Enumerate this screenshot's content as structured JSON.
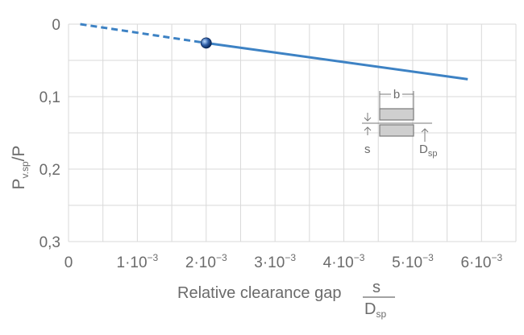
{
  "chart_data": {
    "type": "line",
    "ylabel_main": "P",
    "ylabel_sub": "v.sp",
    "ylabel_tail": "/P",
    "xlabel_text": "Relative clearance gap",
    "xlabel_frac_num": "s",
    "xlabel_frac_den_main": "D",
    "xlabel_frac_den_sub": "sp",
    "xlim": [
      0,
      0.0065
    ],
    "ylim": [
      0,
      0.3
    ],
    "y_inverted": true,
    "grid": true,
    "x_ticks": [
      {
        "value": 0,
        "label": "0"
      },
      {
        "value": 0.001,
        "label": "1·10",
        "exp": "−3"
      },
      {
        "value": 0.002,
        "label": "2·10",
        "exp": "−3"
      },
      {
        "value": 0.003,
        "label": "3·10",
        "exp": "−3"
      },
      {
        "value": 0.004,
        "label": "4·10",
        "exp": "−3"
      },
      {
        "value": 0.005,
        "label": "5·10",
        "exp": "−3"
      },
      {
        "value": 0.006,
        "label": "6·10",
        "exp": "−3"
      }
    ],
    "y_ticks": [
      {
        "value": 0,
        "label": "0"
      },
      {
        "value": 0.1,
        "label": "0,1"
      },
      {
        "value": 0.2,
        "label": "0,2"
      },
      {
        "value": 0.3,
        "label": "0,3"
      }
    ],
    "series": [
      {
        "style": "dashed",
        "x": [
          0.00017,
          0.002
        ],
        "y": [
          0.0,
          0.026
        ]
      },
      {
        "style": "solid",
        "x": [
          0.002,
          0.0058
        ],
        "y": [
          0.026,
          0.076
        ]
      }
    ],
    "marker": {
      "x": 0.002,
      "y": 0.026
    },
    "inset_labels": {
      "b": "b",
      "s": "s",
      "d_main": "D",
      "d_sub": "sp"
    },
    "colors": {
      "line": "#3d82c4",
      "grid": "#d9d9d9",
      "text": "#6b6b6b",
      "inset_fill": "#cfcfcf"
    }
  }
}
